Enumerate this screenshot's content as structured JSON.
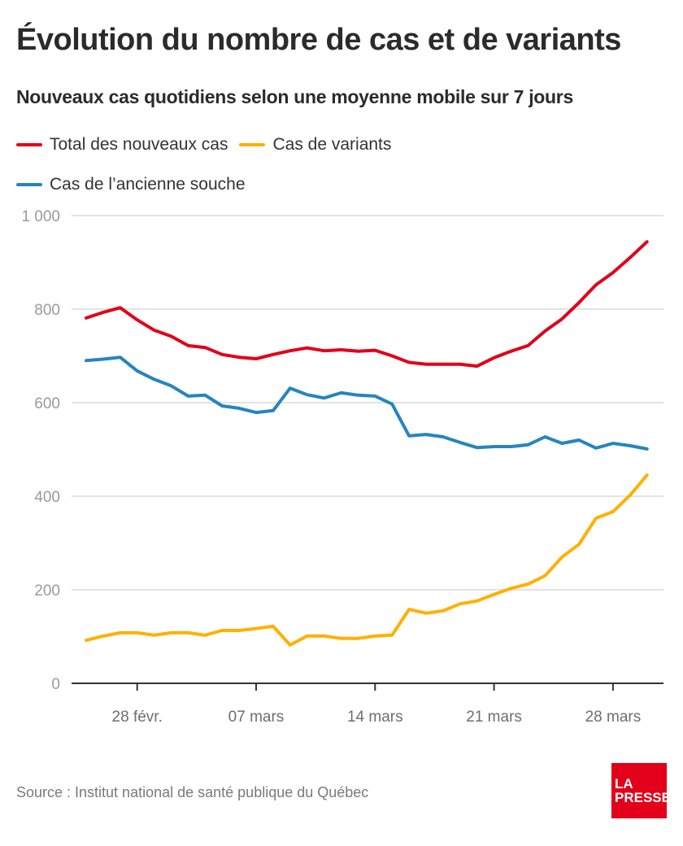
{
  "header": {
    "title": "Évolution du nombre de cas et de variants",
    "subtitle": "Nouveaux cas quotidiens selon une moyenne mobile sur 7 jours"
  },
  "legend": [
    {
      "label": "Total des nouveaux cas",
      "color": "#e2001a"
    },
    {
      "label": "Cas de variants",
      "color": "#ffb000"
    },
    {
      "label": "Cas de l’ancienne souche",
      "color": "#2585c0"
    }
  ],
  "footer": {
    "source": "Source : Institut national de santé publique du Québec",
    "logo_line1": "LA",
    "logo_line2": "PRESSE",
    "logo_color": "#e2001a"
  },
  "chart_data": {
    "type": "line",
    "title": "Évolution du nombre de cas et de variants",
    "subtitle": "Nouveaux cas quotidiens selon une moyenne mobile sur 7 jours",
    "xlabel": "",
    "ylabel": "",
    "x_start": "25 févr.",
    "x_end": "30 mars",
    "x_ticks": [
      {
        "label": "28 févr.",
        "day_index": 3
      },
      {
        "label": "07 mars",
        "day_index": 10
      },
      {
        "label": "14 mars",
        "day_index": 17
      },
      {
        "label": "21 mars",
        "day_index": 24
      },
      {
        "label": "28 mars",
        "day_index": 31
      }
    ],
    "ylim": [
      0,
      1000
    ],
    "y_ticks": [
      {
        "value": 0,
        "label": "0"
      },
      {
        "value": 200,
        "label": "200"
      },
      {
        "value": 400,
        "label": "400"
      },
      {
        "value": 600,
        "label": "600"
      },
      {
        "value": 800,
        "label": "800"
      },
      {
        "value": 1000,
        "label": "1 000"
      }
    ],
    "grid": true,
    "legend_position": "top-left",
    "series": [
      {
        "name": "Total des nouveaux cas",
        "color": "#e2001a",
        "values": [
          781,
          793,
          803,
          777,
          755,
          742,
          722,
          718,
          703,
          697,
          694,
          703,
          711,
          717,
          711,
          713,
          710,
          712,
          700,
          686,
          682,
          682,
          682,
          678,
          696,
          710,
          722,
          753,
          779,
          814,
          852,
          878,
          910,
          944
        ]
      },
      {
        "name": "Cas de variants",
        "color": "#ffb000",
        "values": [
          92,
          101,
          108,
          108,
          103,
          108,
          108,
          103,
          113,
          113,
          117,
          122,
          82,
          101,
          101,
          96,
          96,
          101,
          103,
          158,
          150,
          155,
          170,
          176,
          190,
          203,
          212,
          230,
          270,
          297,
          353,
          367,
          402,
          445
        ]
      },
      {
        "name": "Cas de l’ancienne souche",
        "color": "#2585c0",
        "values": [
          690,
          693,
          697,
          668,
          650,
          636,
          614,
          616,
          593,
          588,
          579,
          583,
          631,
          617,
          610,
          621,
          616,
          614,
          597,
          529,
          532,
          527,
          515,
          504,
          506,
          506,
          510,
          527,
          513,
          520,
          503,
          513,
          508,
          501
        ]
      }
    ]
  }
}
